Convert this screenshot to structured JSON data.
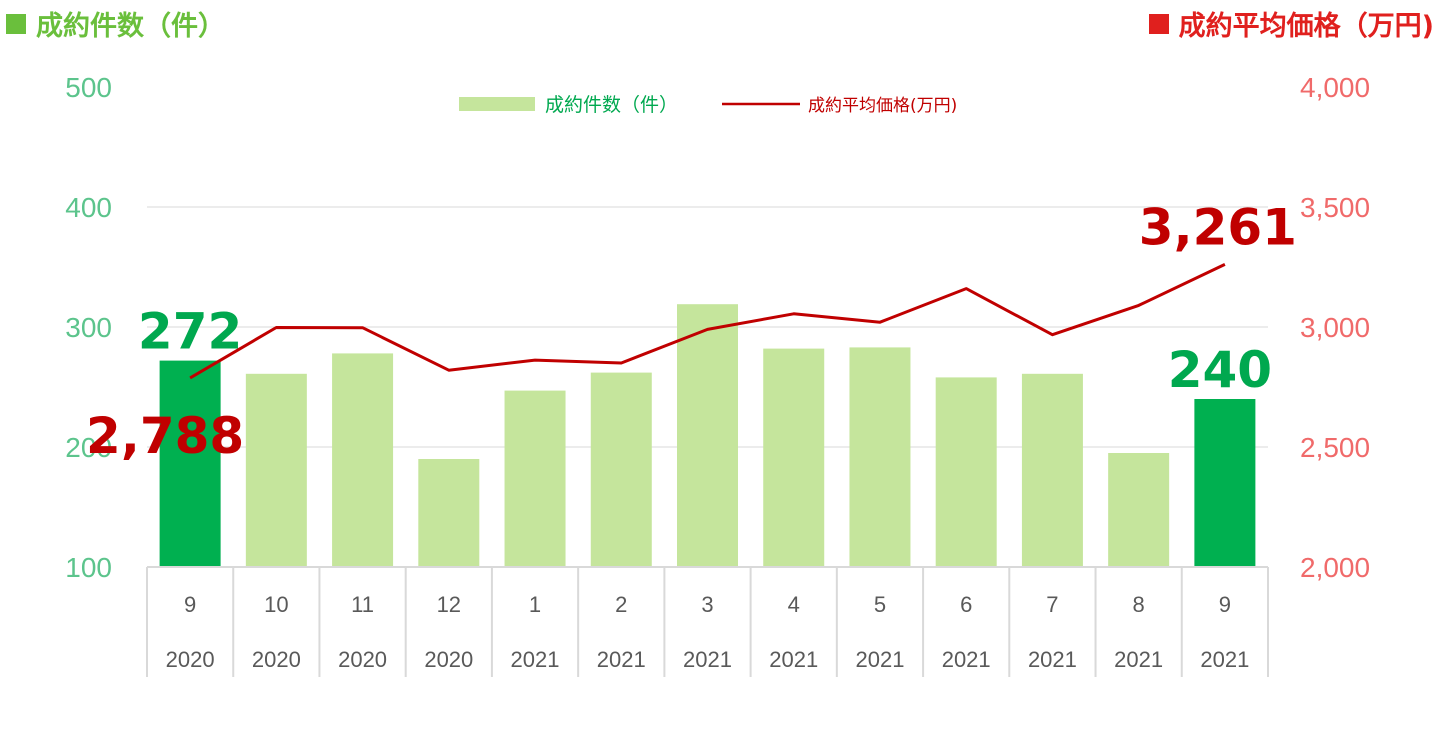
{
  "header": {
    "left_label": "成約件数（件）",
    "right_label": "成約平均価格（万円)"
  },
  "colors": {
    "bar_normal": "#c5e59c",
    "bar_highlight": "#00b050",
    "line": "#c00000",
    "left_axis_text": "#5cc48c",
    "right_axis_text": "#f06a6a"
  },
  "chart_data": {
    "type": "bar+line",
    "categories": [
      {
        "month": "9",
        "year": "2020"
      },
      {
        "month": "10",
        "year": "2020"
      },
      {
        "month": "11",
        "year": "2020"
      },
      {
        "month": "12",
        "year": "2020"
      },
      {
        "month": "1",
        "year": "2021"
      },
      {
        "month": "2",
        "year": "2021"
      },
      {
        "month": "3",
        "year": "2021"
      },
      {
        "month": "4",
        "year": "2021"
      },
      {
        "month": "5",
        "year": "2021"
      },
      {
        "month": "6",
        "year": "2021"
      },
      {
        "month": "7",
        "year": "2021"
      },
      {
        "month": "8",
        "year": "2021"
      },
      {
        "month": "9",
        "year": "2021"
      }
    ],
    "series": [
      {
        "name": "成約件数（件）",
        "type": "bar",
        "axis": "left",
        "values": [
          272,
          261,
          278,
          190,
          247,
          262,
          319,
          282,
          283,
          258,
          261,
          195,
          240
        ],
        "highlight": [
          true,
          false,
          false,
          false,
          false,
          false,
          false,
          false,
          false,
          false,
          false,
          false,
          true
        ]
      },
      {
        "name": "成約平均価格(万円)",
        "type": "line",
        "axis": "right",
        "values": [
          2788,
          2998,
          2997,
          2820,
          2862,
          2850,
          2990,
          3055,
          3020,
          3160,
          2968,
          3090,
          3261
        ]
      }
    ],
    "left_axis": {
      "ylim": [
        100,
        500
      ],
      "ticks": [
        "100",
        "200",
        "300",
        "400",
        "500"
      ]
    },
    "right_axis": {
      "ylim": [
        2000,
        4000
      ],
      "ticks": [
        "2,000",
        "2,500",
        "3,000",
        "3,500",
        "4,000"
      ]
    },
    "legend": {
      "position": "top-center",
      "entries": [
        "成約件数（件）",
        "成約平均価格(万円)"
      ]
    },
    "grid": true,
    "data_labels": [
      {
        "series": "bar",
        "index": 0,
        "text": "272"
      },
      {
        "series": "bar",
        "index": 12,
        "text": "240"
      },
      {
        "series": "line",
        "index": 0,
        "text": "2,788"
      },
      {
        "series": "line",
        "index": 12,
        "text": "3,261"
      }
    ]
  }
}
